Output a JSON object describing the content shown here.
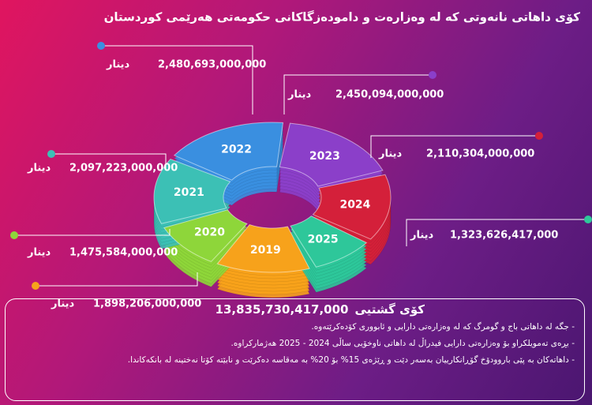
{
  "chart_data": {
    "type": "pie",
    "title": "کۆی داهاتی نانەوتی کە لە وەزارەت و دامودەزگاکانی حکومەتی هەرێمی کوردستان",
    "categories": [
      "2019",
      "2020",
      "2021",
      "2022",
      "2023",
      "2024",
      "2025"
    ],
    "values": [
      1898206000000,
      1475584000000,
      2097223000000,
      2480693000000,
      2450094000000,
      2110304000000,
      1323626417000
    ],
    "value_labels": [
      "1,898,206,000,000",
      "1,475,584,000,000",
      "2,097,223,000,000",
      "2,480,693,000,000",
      "2,450,094,000,000",
      "2,110,304,000,000",
      "1,323,626,417,000"
    ],
    "unit": "دینار",
    "colors": [
      "#f7a21b",
      "#8ed63a",
      "#3cc0b5",
      "#3a8fe0",
      "#8b3fc9",
      "#d4203a",
      "#2ec79a"
    ],
    "total_label": "کۆی گشتیی",
    "total": "13,835,730,417,000",
    "notes": [
      "جگە لە داهاتی باج و گومرگ کە لە وەزارەتی دارایی و ئابووری کۆدەکرێتەوە.",
      "بڕەی تەمویلکراو بۆ وەزارەتی دارایی فیدراڵ لە داهاتی ناوخۆیی ساڵی 2024 - 2025 هەژمارکراوە.",
      "داهاتەکان بە پێی باروودۆخ گۆڕانکارییان بەسەر دێت و ڕێژەی 15% بۆ 20% بە مەقاسە دەکرێت و نابێتە کۆتا نەختینە لە بانکەکاندا."
    ]
  }
}
